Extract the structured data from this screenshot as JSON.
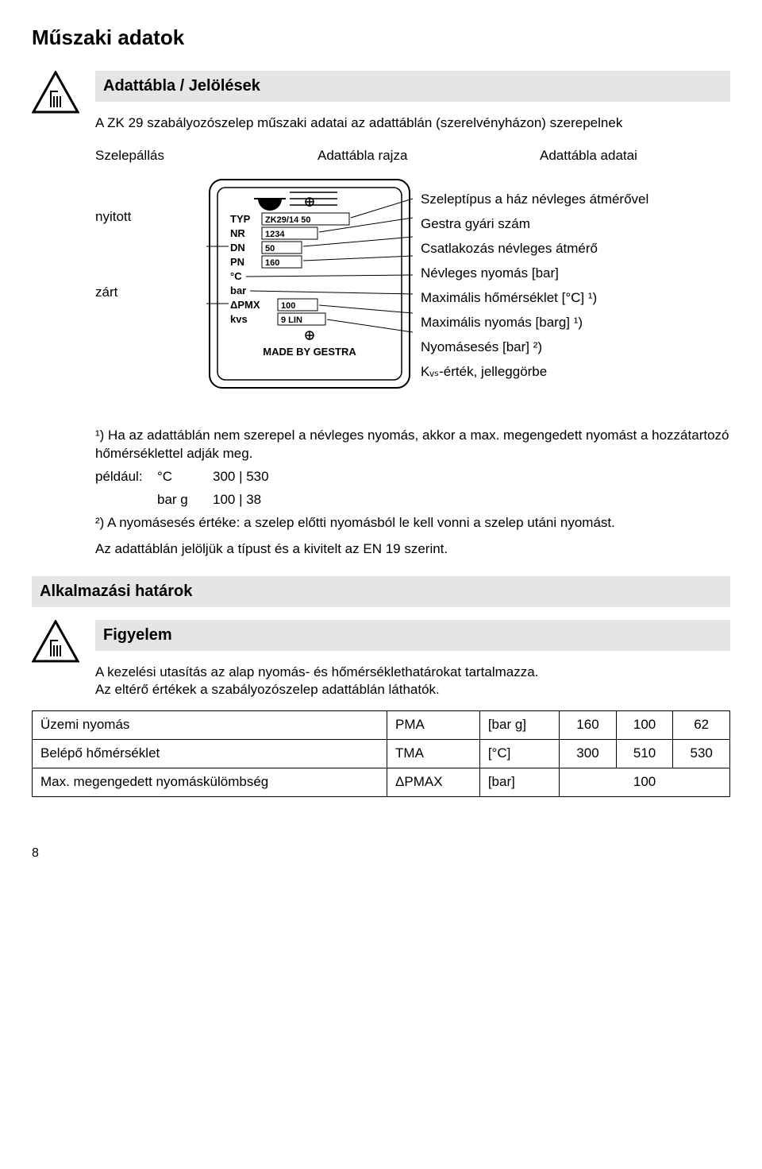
{
  "title": "Műszaki adatok",
  "sec1": {
    "heading": "Adattábla / Jelölések",
    "intro": "A ZK 29 szabályozószelep műszaki adatai az adattáblán (szerelvényházon) szerepelnek",
    "colhead": {
      "a": "Szelepállás",
      "b": "Adattábla rajza",
      "c": "Adattábla adatai"
    },
    "left": {
      "open": "nyitott",
      "closed": "zárt"
    },
    "plate": {
      "rows": [
        {
          "k": "TYP",
          "v": "ZK29/14   50"
        },
        {
          "k": "NR",
          "v": "1234"
        },
        {
          "k": "DN",
          "v": "50"
        },
        {
          "k": "PN",
          "v": "160"
        },
        {
          "k": "°C",
          "v": ""
        },
        {
          "k": "bar",
          "v": ""
        },
        {
          "k": "ΔPMX",
          "v": "100"
        },
        {
          "k": "kvs",
          "v": "9 LIN"
        }
      ],
      "footer": "MADE BY GESTRA"
    },
    "right": [
      "Szeleptípus a ház névleges átmérővel",
      "Gestra gyári szám",
      "Csatlakozás névleges átmérő",
      "Névleges nyomás [bar]",
      "Maximális hőmérséklet  [°C] ¹)",
      "Maximális nyomás [barg] ¹)",
      "Nyomásesés [bar] ²)",
      "Kᵥₛ-érték, jelleggörbe"
    ]
  },
  "notes": {
    "n1a": "¹) Ha az adattáblán nem szerepel a névleges nyomás, akkor a max. megengedett nyomást a hozzátartozó hőmérséklettel adják meg.",
    "example_label": "például:",
    "ex1_unit": "°C",
    "ex1_vals": "300 | 530",
    "ex2_unit": "bar g",
    "ex2_vals": "100 |   38",
    "n2": "²) A nyomásesés értéke: a szelep előtti nyomásból le kell vonni a szelep utáni nyomást.",
    "last": "Az adattáblán jelöljük a típust és a kivitelt az EN 19 szerint."
  },
  "sec2": {
    "heading": "Alkalmazási határok",
    "sub": "Figyelem",
    "p1": "A kezelési utasítás az alap nyomás- és hőmérséklethatárokat tartalmazza.",
    "p2": "Az eltérő értékek a szabályozószelep adattáblán láthatók."
  },
  "table": {
    "rows": [
      {
        "label": "Üzemi nyomás",
        "sym": "PMA",
        "unit": "[bar g]",
        "v1": "160",
        "v2": "100",
        "v3": "62"
      },
      {
        "label": "Belépő hőmérséklet",
        "sym": "TMA",
        "unit": "[°C]",
        "v1": "300",
        "v2": "510",
        "v3": "530"
      },
      {
        "label": "Max. megengedett nyomáskülömbség",
        "sym": "ΔPMAX",
        "unit": "[bar]",
        "v1": "",
        "v2": "100",
        "v3": ""
      }
    ]
  },
  "page_number": "8"
}
